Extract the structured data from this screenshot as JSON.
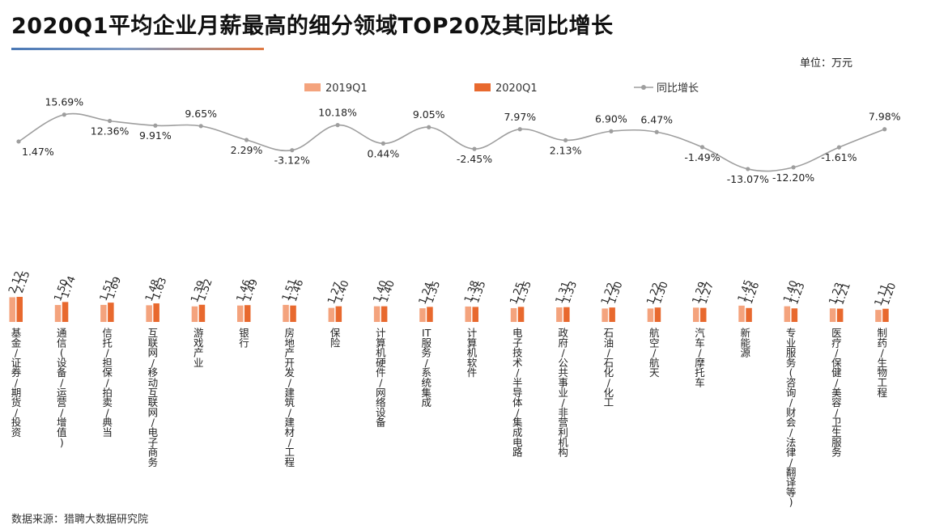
{
  "title": "2020Q1平均企业月薪最高的细分领域TOP20及其同比增长",
  "unit": "单位：万元",
  "source": "数据来源：猎聘大数据研究院",
  "colors": {
    "series_2019": "#f4a37d",
    "series_2020": "#e8692e",
    "growth_line": "#9e9e9e"
  },
  "chart_data": {
    "type": "bar",
    "legend": {
      "placement": "top-center"
    },
    "categories": [
      "基金/证券/期货/投资",
      "通信(设备/运营/增值)",
      "信托/担保/拍卖/典当",
      "互联网/移动互联网/电子商务",
      "游戏产业",
      "银行",
      "房地产开发/建筑/建材/工程",
      "保险",
      "计算机硬件/网络设备",
      "IT服务/系统集成",
      "计算机软件",
      "电子技术/半导体/集成电路",
      "政府/公共事业/非营利机构",
      "石油/石化/化工",
      "航空/航天",
      "汽车/摩托车",
      "新能源",
      "专业服务(咨询/财会/法律/翻译等)",
      "医疗/保健/美容/卫生服务",
      "制药/生物工程"
    ],
    "series": [
      {
        "name": "2019Q1",
        "type": "bar",
        "values": [
          2.12,
          1.5,
          1.51,
          1.48,
          1.39,
          1.46,
          1.51,
          1.27,
          1.4,
          1.24,
          1.38,
          1.25,
          1.31,
          1.22,
          1.22,
          1.29,
          1.45,
          1.4,
          1.23,
          1.11
        ]
      },
      {
        "name": "2020Q1",
        "type": "bar",
        "values": [
          2.15,
          1.74,
          1.69,
          1.63,
          1.52,
          1.49,
          1.46,
          1.4,
          1.4,
          1.35,
          1.35,
          1.35,
          1.33,
          1.3,
          1.3,
          1.27,
          1.26,
          1.23,
          1.21,
          1.2
        ]
      },
      {
        "name": "同比增长",
        "type": "line",
        "values": [
          1.47,
          15.69,
          12.36,
          9.91,
          9.65,
          2.29,
          -3.12,
          10.18,
          0.44,
          9.05,
          -2.45,
          7.97,
          2.13,
          6.9,
          6.47,
          -1.49,
          -13.07,
          -12.2,
          -1.61,
          7.98
        ],
        "labels": [
          "1.47%",
          "15.69%",
          "12.36%",
          "9.91%",
          "9.65%",
          "2.29%",
          "-3.12%",
          "10.18%",
          "0.44%",
          "9.05%",
          "-2.45%",
          "7.97%",
          "2.13%",
          "6.90%",
          "6.47%",
          "-1.49%",
          "-13.07%",
          "-12.20%",
          "-1.61%",
          "7.98%"
        ]
      }
    ]
  }
}
